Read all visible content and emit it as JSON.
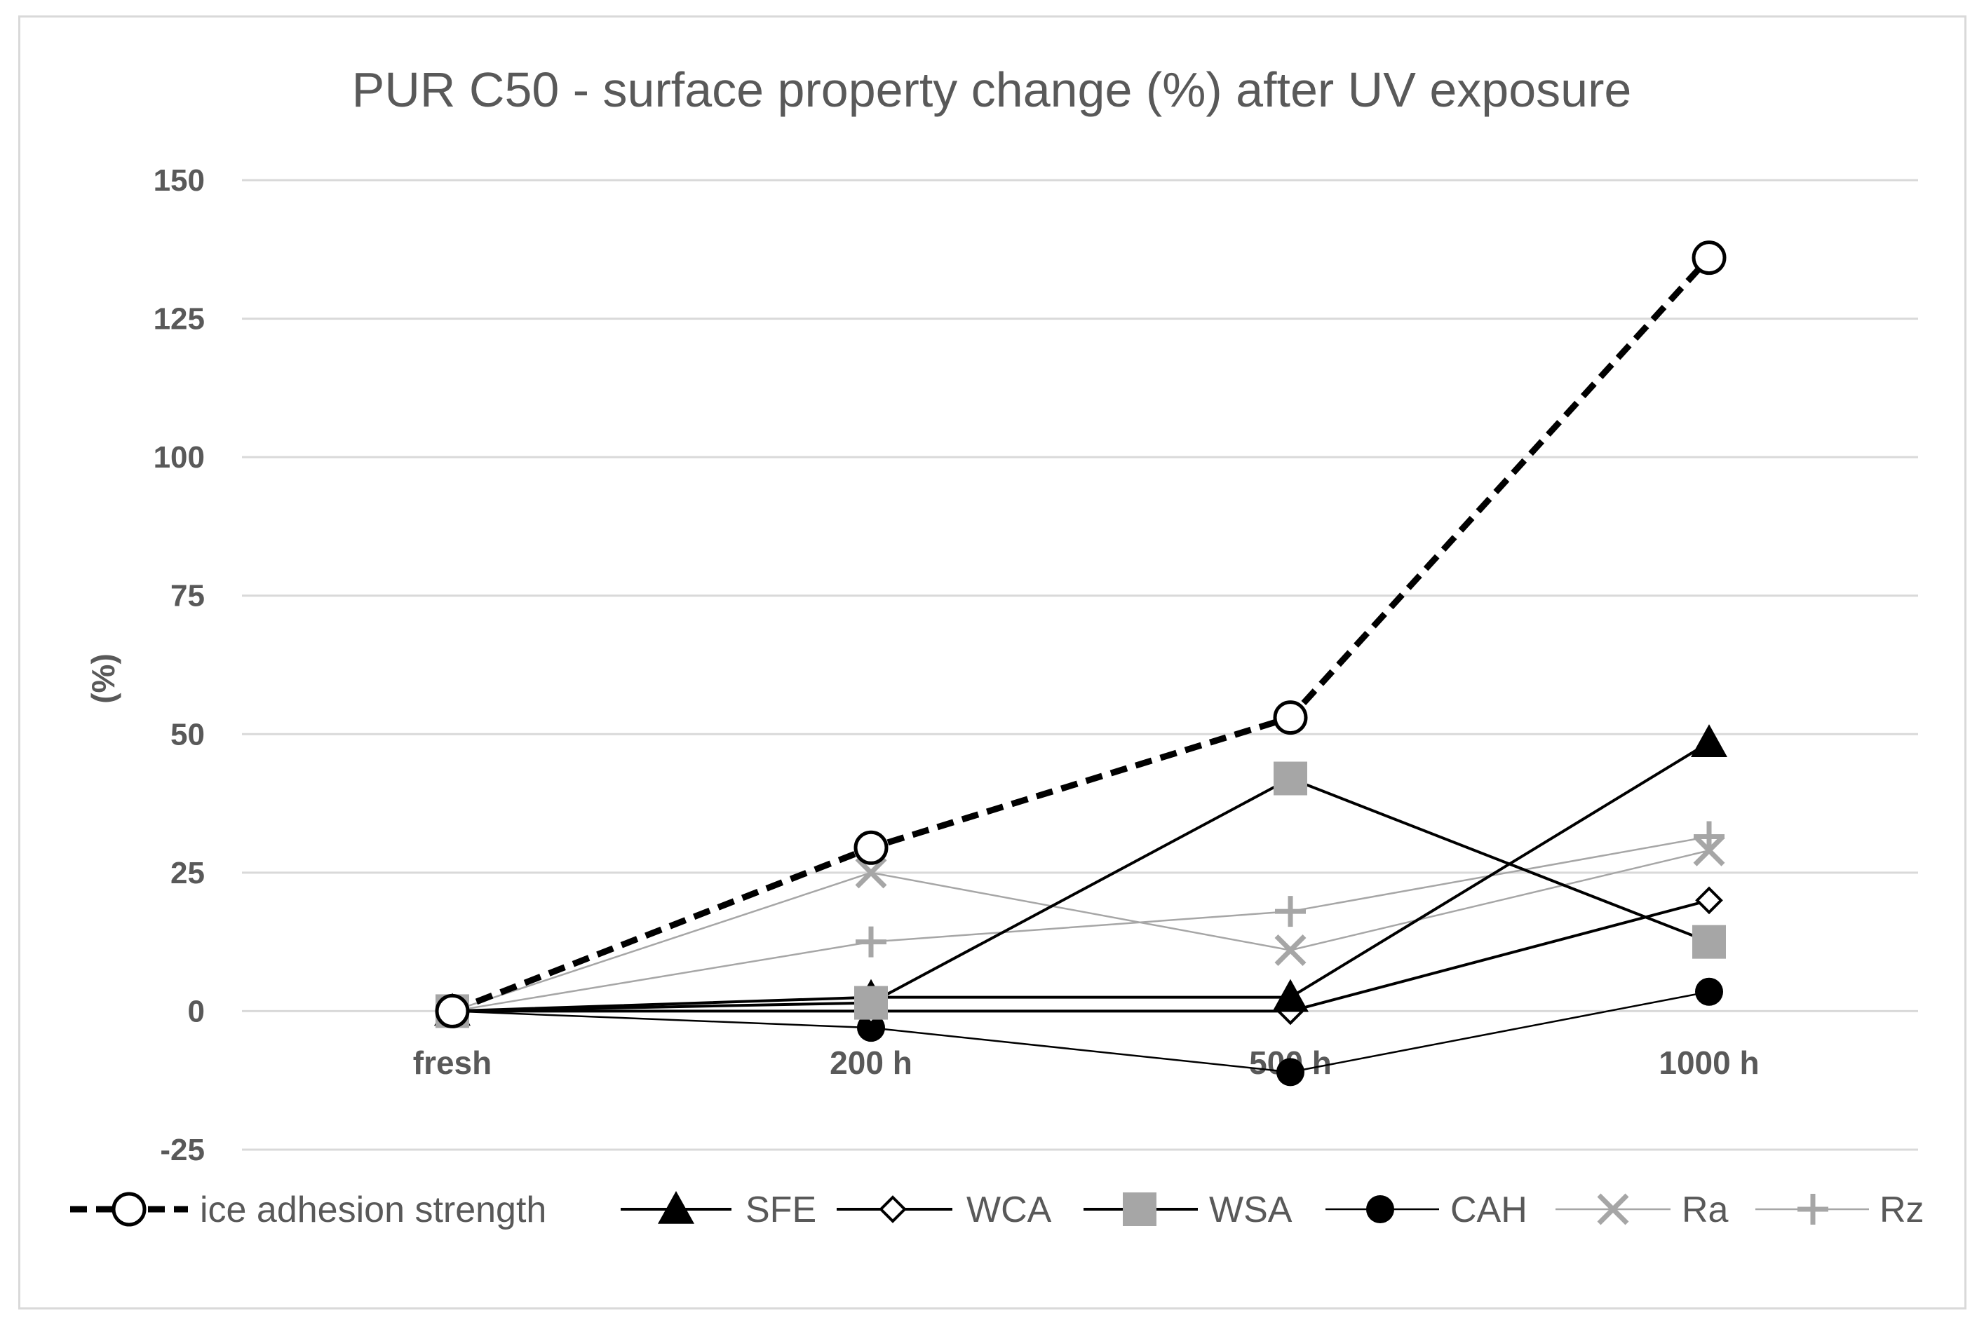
{
  "chart_data": {
    "type": "line",
    "title": "PUR C50 - surface property change (%) after UV exposure",
    "xlabel": "",
    "ylabel": "(%)",
    "ylim": [
      -25,
      150
    ],
    "yticks": [
      -25,
      0,
      25,
      50,
      75,
      100,
      125,
      150
    ],
    "grid": true,
    "legend_position": "bottom",
    "categories": [
      "fresh",
      "200 h",
      "500 h",
      "1000 h"
    ],
    "series": [
      {
        "name": "ice adhesion strength",
        "values": [
          0,
          29.5,
          53,
          136
        ],
        "color": "#000000",
        "dash": true,
        "marker": "open-circle",
        "width": 9
      },
      {
        "name": "SFE",
        "values": [
          0,
          2.5,
          2.5,
          48.5
        ],
        "color": "#000000",
        "dash": false,
        "marker": "triangle",
        "width": 4
      },
      {
        "name": "WCA",
        "values": [
          0,
          0,
          0,
          20
        ],
        "color": "#000000",
        "dash": false,
        "marker": "open-diamond",
        "width": 4
      },
      {
        "name": "WSA",
        "values": [
          0,
          1.5,
          42,
          12.5
        ],
        "color": "#a6a6a6",
        "dash": false,
        "marker": "square",
        "width": 4,
        "line_color": "#000000"
      },
      {
        "name": "CAH",
        "values": [
          0,
          -3,
          -11,
          3.5
        ],
        "color": "#000000",
        "dash": false,
        "marker": "filled-circle",
        "width": 2.5
      },
      {
        "name": "Ra",
        "values": [
          0,
          25,
          11,
          29
        ],
        "color": "#a6a6a6",
        "dash": false,
        "marker": "x",
        "width": 2.5
      },
      {
        "name": "Rz",
        "values": [
          0,
          12.5,
          18,
          31.5
        ],
        "color": "#a6a6a6",
        "dash": false,
        "marker": "plus",
        "width": 2.5
      }
    ]
  }
}
